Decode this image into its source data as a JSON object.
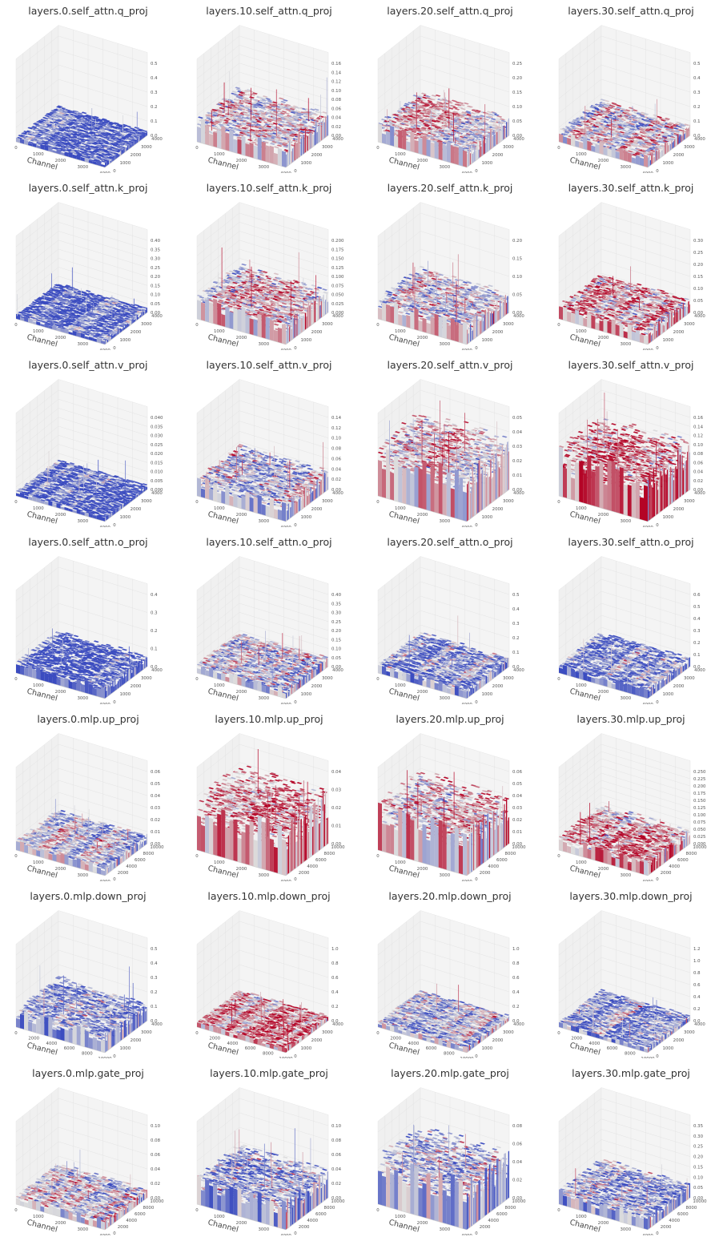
{
  "figure": {
    "colormap_low": "#3b4cc0",
    "colormap_mid": "#dddddd",
    "colormap_high": "#b40426",
    "pane_color": "#f0f0f0",
    "grid_color": "#e3e3e3"
  },
  "chart_data": [
    {
      "type": "surface3d",
      "title": "layers.0.self_attn.q_proj",
      "xlabel": "Channel",
      "x_ticks": [
        "0",
        "1000",
        "2000",
        "3000",
        "4000"
      ],
      "y_ticks": [
        "0",
        "1000",
        "2000",
        "3000",
        "4000"
      ],
      "z_ticks": [
        "0.0",
        "0.1",
        "0.2",
        "0.3",
        "0.4",
        "0.5"
      ],
      "zlim": [
        0,
        0.5
      ],
      "base_level": 0.05,
      "warmth": 0.05
    },
    {
      "type": "surface3d",
      "title": "layers.10.self_attn.q_proj",
      "xlabel": "Channel",
      "x_ticks": [
        "0",
        "1000",
        "2000",
        "3000",
        "4000"
      ],
      "y_ticks": [
        "0",
        "1000",
        "2000",
        "3000",
        "4000"
      ],
      "z_ticks": [
        "0.00",
        "0.02",
        "0.04",
        "0.06",
        "0.08",
        "0.10",
        "0.12",
        "0.14",
        "0.16"
      ],
      "zlim": [
        0,
        0.16
      ],
      "base_level": 0.25,
      "warmth": 0.55
    },
    {
      "type": "surface3d",
      "title": "layers.20.self_attn.q_proj",
      "xlabel": "Channel",
      "x_ticks": [
        "0",
        "1000",
        "2000",
        "3000",
        "4000"
      ],
      "y_ticks": [
        "0",
        "1000",
        "2000",
        "3000",
        "4000"
      ],
      "z_ticks": [
        "0.00",
        "0.05",
        "0.10",
        "0.15",
        "0.20",
        "0.25"
      ],
      "zlim": [
        0,
        0.25
      ],
      "base_level": 0.2,
      "warmth": 0.5
    },
    {
      "type": "surface3d",
      "title": "layers.30.self_attn.q_proj",
      "xlabel": "Channel",
      "x_ticks": [
        "0",
        "1000",
        "2000",
        "3000",
        "4000"
      ],
      "y_ticks": [
        "0",
        "1000",
        "2000",
        "3000",
        "4000"
      ],
      "z_ticks": [
        "0.0",
        "0.1",
        "0.2",
        "0.3",
        "0.4",
        "0.5"
      ],
      "zlim": [
        0,
        0.5
      ],
      "base_level": 0.12,
      "warmth": 0.5
    },
    {
      "type": "surface3d",
      "title": "layers.0.self_attn.k_proj",
      "xlabel": "Channel",
      "x_ticks": [
        "0",
        "1000",
        "2000",
        "3000",
        "4000"
      ],
      "y_ticks": [
        "0",
        "1000",
        "2000",
        "3000",
        "4000"
      ],
      "z_ticks": [
        "0.00",
        "0.05",
        "0.10",
        "0.15",
        "0.20",
        "0.25",
        "0.30",
        "0.35",
        "0.40"
      ],
      "zlim": [
        0,
        0.4
      ],
      "base_level": 0.05,
      "warmth": 0.05
    },
    {
      "type": "surface3d",
      "title": "layers.10.self_attn.k_proj",
      "xlabel": "Channel",
      "x_ticks": [
        "0",
        "1000",
        "2000",
        "3000",
        "4000"
      ],
      "y_ticks": [
        "0",
        "1000",
        "2000",
        "3000",
        "4000"
      ],
      "z_ticks": [
        "0.000",
        "0.025",
        "0.050",
        "0.075",
        "0.100",
        "0.125",
        "0.150",
        "0.175",
        "0.200"
      ],
      "zlim": [
        0,
        0.2
      ],
      "base_level": 0.25,
      "warmth": 0.55
    },
    {
      "type": "surface3d",
      "title": "layers.20.self_attn.k_proj",
      "xlabel": "Channel",
      "x_ticks": [
        "0",
        "1000",
        "2000",
        "3000",
        "4000"
      ],
      "y_ticks": [
        "0",
        "1000",
        "2000",
        "3000",
        "4000"
      ],
      "z_ticks": [
        "0.00",
        "0.05",
        "0.10",
        "0.15",
        "0.20"
      ],
      "zlim": [
        0,
        0.2
      ],
      "base_level": 0.22,
      "warmth": 0.5
    },
    {
      "type": "surface3d",
      "title": "layers.30.self_attn.k_proj",
      "xlabel": "Channel",
      "x_ticks": [
        "0",
        "1000",
        "2000",
        "3000",
        "4000"
      ],
      "y_ticks": [
        "0",
        "1000",
        "2000",
        "3000",
        "4000"
      ],
      "z_ticks": [
        "0.00",
        "0.05",
        "0.10",
        "0.15",
        "0.20",
        "0.25",
        "0.30"
      ],
      "zlim": [
        0,
        0.3
      ],
      "base_level": 0.15,
      "warmth": 0.6
    },
    {
      "type": "surface3d",
      "title": "layers.0.self_attn.v_proj",
      "xlabel": "Channel",
      "x_ticks": [
        "0",
        "1000",
        "2000",
        "3000",
        "4000"
      ],
      "y_ticks": [
        "0",
        "1000",
        "2000",
        "3000",
        "4000"
      ],
      "z_ticks": [
        "0.000",
        "0.005",
        "0.010",
        "0.015",
        "0.020",
        "0.025",
        "0.030",
        "0.035",
        "0.040"
      ],
      "zlim": [
        0,
        0.04
      ],
      "base_level": 0.05,
      "warmth": 0.05
    },
    {
      "type": "surface3d",
      "title": "layers.10.self_attn.v_proj",
      "xlabel": "Channel",
      "x_ticks": [
        "0",
        "1000",
        "2000",
        "3000",
        "4000"
      ],
      "y_ticks": [
        "0",
        "1000",
        "2000",
        "3000",
        "4000"
      ],
      "z_ticks": [
        "0.00",
        "0.02",
        "0.04",
        "0.06",
        "0.08",
        "0.10",
        "0.12",
        "0.14"
      ],
      "zlim": [
        0,
        0.14
      ],
      "base_level": 0.2,
      "warmth": 0.4
    },
    {
      "type": "surface3d",
      "title": "layers.20.self_attn.v_proj",
      "xlabel": "Channel",
      "x_ticks": [
        "0",
        "1000",
        "2000",
        "3000",
        "4000"
      ],
      "y_ticks": [
        "0",
        "1000",
        "2000",
        "3000",
        "4000"
      ],
      "z_ticks": [
        "0.00",
        "0.01",
        "0.02",
        "0.03",
        "0.04",
        "0.05"
      ],
      "zlim": [
        0,
        0.05
      ],
      "base_level": 0.55,
      "warmth": 0.55
    },
    {
      "type": "surface3d",
      "title": "layers.30.self_attn.v_proj",
      "xlabel": "Channel",
      "x_ticks": [
        "0",
        "1000",
        "2000",
        "3000",
        "4000"
      ],
      "y_ticks": [
        "0",
        "1000",
        "2000",
        "3000",
        "4000"
      ],
      "z_ticks": [
        "0.00",
        "0.02",
        "0.04",
        "0.06",
        "0.08",
        "0.10",
        "0.12",
        "0.14",
        "0.16"
      ],
      "zlim": [
        0,
        0.16
      ],
      "base_level": 0.5,
      "warmth": 0.75
    },
    {
      "type": "surface3d",
      "title": "layers.0.self_attn.o_proj",
      "xlabel": "Channel",
      "x_ticks": [
        "0",
        "1000",
        "2000",
        "3000",
        "4000"
      ],
      "y_ticks": [
        "0",
        "1000",
        "2000",
        "3000",
        "4000"
      ],
      "z_ticks": [
        "0.0",
        "0.1",
        "0.2",
        "0.3",
        "0.4"
      ],
      "zlim": [
        0,
        0.4
      ],
      "base_level": 0.12,
      "warmth": 0.05
    },
    {
      "type": "surface3d",
      "title": "layers.10.self_attn.o_proj",
      "xlabel": "Channel",
      "x_ticks": [
        "0",
        "1000",
        "2000",
        "3000",
        "4000"
      ],
      "y_ticks": [
        "0",
        "1000",
        "2000",
        "3000",
        "4000"
      ],
      "z_ticks": [
        "0.00",
        "0.05",
        "0.10",
        "0.15",
        "0.20",
        "0.25",
        "0.30",
        "0.35",
        "0.40"
      ],
      "zlim": [
        0,
        0.4
      ],
      "base_level": 0.1,
      "warmth": 0.4
    },
    {
      "type": "surface3d",
      "title": "layers.20.self_attn.o_proj",
      "xlabel": "Channel",
      "x_ticks": [
        "0",
        "1000",
        "2000",
        "3000",
        "4000"
      ],
      "y_ticks": [
        "0",
        "1000",
        "2000",
        "3000",
        "4000"
      ],
      "z_ticks": [
        "0.0",
        "0.1",
        "0.2",
        "0.3",
        "0.4",
        "0.5"
      ],
      "zlim": [
        0,
        0.5
      ],
      "base_level": 0.1,
      "warmth": 0.25
    },
    {
      "type": "surface3d",
      "title": "layers.30.self_attn.o_proj",
      "xlabel": "Channel",
      "x_ticks": [
        "0",
        "1000",
        "2000",
        "3000",
        "4000"
      ],
      "y_ticks": [
        "0",
        "1000",
        "2000",
        "3000",
        "4000"
      ],
      "z_ticks": [
        "0.0",
        "0.1",
        "0.2",
        "0.3",
        "0.4",
        "0.5",
        "0.6"
      ],
      "zlim": [
        0,
        0.6
      ],
      "base_level": 0.1,
      "warmth": 0.2
    },
    {
      "type": "surface3d",
      "title": "layers.0.mlp.up_proj",
      "xlabel": "Channel",
      "x_ticks": [
        "0",
        "1000",
        "2000",
        "3000",
        "4000"
      ],
      "y_ticks": [
        "0",
        "2000",
        "4000",
        "6000",
        "8000",
        "10000"
      ],
      "z_ticks": [
        "0.00",
        "0.01",
        "0.02",
        "0.03",
        "0.04",
        "0.05",
        "0.06"
      ],
      "zlim": [
        0,
        0.06
      ],
      "base_level": 0.1,
      "warmth": 0.4
    },
    {
      "type": "surface3d",
      "title": "layers.10.mlp.up_proj",
      "xlabel": "Channel",
      "x_ticks": [
        "0",
        "1000",
        "2000",
        "3000",
        "4000"
      ],
      "y_ticks": [
        "0",
        "2000",
        "4000",
        "6000",
        "8000",
        "10000"
      ],
      "z_ticks": [
        "0.00",
        "0.01",
        "0.02",
        "0.03",
        "0.04"
      ],
      "zlim": [
        0,
        0.04
      ],
      "base_level": 0.55,
      "warmth": 0.7
    },
    {
      "type": "surface3d",
      "title": "layers.20.mlp.up_proj",
      "xlabel": "Channel",
      "x_ticks": [
        "0",
        "1000",
        "2000",
        "3000",
        "4000"
      ],
      "y_ticks": [
        "0",
        "2000",
        "4000",
        "6000",
        "8000",
        "10000"
      ],
      "z_ticks": [
        "0.00",
        "0.01",
        "0.02",
        "0.03",
        "0.04",
        "0.05",
        "0.06"
      ],
      "zlim": [
        0,
        0.06
      ],
      "base_level": 0.5,
      "warmth": 0.6
    },
    {
      "type": "surface3d",
      "title": "layers.30.mlp.up_proj",
      "xlabel": "Channel",
      "x_ticks": [
        "0",
        "1000",
        "2000",
        "3000",
        "4000"
      ],
      "y_ticks": [
        "0",
        "2000",
        "4000",
        "6000",
        "8000",
        "10000"
      ],
      "z_ticks": [
        "0.000",
        "0.025",
        "0.050",
        "0.075",
        "0.100",
        "0.125",
        "0.150",
        "0.175",
        "0.200",
        "0.225",
        "0.250"
      ],
      "zlim": [
        0,
        0.25
      ],
      "base_level": 0.15,
      "warmth": 0.7
    },
    {
      "type": "surface3d",
      "title": "layers.0.mlp.down_proj",
      "xlabel": "Channel",
      "x_ticks": [
        "0",
        "2000",
        "4000",
        "6000",
        "8000",
        "10000"
      ],
      "y_ticks": [
        "0",
        "1000",
        "2000",
        "3000",
        "4000"
      ],
      "z_ticks": [
        "0.0",
        "0.1",
        "0.2",
        "0.3",
        "0.4",
        "0.5"
      ],
      "zlim": [
        0,
        0.5
      ],
      "base_level": 0.2,
      "warmth": 0.2
    },
    {
      "type": "surface3d",
      "title": "layers.10.mlp.down_proj",
      "xlabel": "Channel",
      "x_ticks": [
        "0",
        "2000",
        "4000",
        "6000",
        "8000",
        "10000"
      ],
      "y_ticks": [
        "0",
        "1000",
        "2000",
        "3000",
        "4000"
      ],
      "z_ticks": [
        "0.0",
        "0.2",
        "0.4",
        "0.6",
        "0.8",
        "1.0"
      ],
      "zlim": [
        0,
        1.0
      ],
      "base_level": 0.06,
      "warmth": 0.65
    },
    {
      "type": "surface3d",
      "title": "layers.20.mlp.down_proj",
      "xlabel": "Channel",
      "x_ticks": [
        "0",
        "2000",
        "4000",
        "6000",
        "8000",
        "10000"
      ],
      "y_ticks": [
        "0",
        "1000",
        "2000",
        "3000",
        "4000"
      ],
      "z_ticks": [
        "0.0",
        "0.2",
        "0.4",
        "0.6",
        "0.8",
        "1.0"
      ],
      "zlim": [
        0,
        1.0
      ],
      "base_level": 0.06,
      "warmth": 0.45
    },
    {
      "type": "surface3d",
      "title": "layers.30.mlp.down_proj",
      "xlabel": "Channel",
      "x_ticks": [
        "0",
        "2000",
        "4000",
        "6000",
        "8000",
        "10000"
      ],
      "y_ticks": [
        "0",
        "1000",
        "2000",
        "3000",
        "4000"
      ],
      "z_ticks": [
        "0.0",
        "0.2",
        "0.4",
        "0.6",
        "0.8",
        "1.0",
        "1.2"
      ],
      "zlim": [
        0,
        1.2
      ],
      "base_level": 0.06,
      "warmth": 0.3
    },
    {
      "type": "surface3d",
      "title": "layers.0.mlp.gate_proj",
      "xlabel": "Channel",
      "x_ticks": [
        "0",
        "1000",
        "2000",
        "3000",
        "4000"
      ],
      "y_ticks": [
        "0",
        "2000",
        "4000",
        "6000",
        "8000",
        "10000"
      ],
      "z_ticks": [
        "0.00",
        "0.02",
        "0.04",
        "0.06",
        "0.08",
        "0.10"
      ],
      "zlim": [
        0,
        0.1
      ],
      "base_level": 0.1,
      "warmth": 0.45
    },
    {
      "type": "surface3d",
      "title": "layers.10.mlp.gate_proj",
      "xlabel": "Channel",
      "x_ticks": [
        "0",
        "1000",
        "2000",
        "3000",
        "4000"
      ],
      "y_ticks": [
        "0",
        "2000",
        "4000",
        "6000",
        "8000",
        "10000"
      ],
      "z_ticks": [
        "0.00",
        "0.02",
        "0.04",
        "0.06",
        "0.08",
        "0.10"
      ],
      "zlim": [
        0,
        0.1
      ],
      "base_level": 0.3,
      "warmth": 0.3
    },
    {
      "type": "surface3d",
      "title": "layers.20.mlp.gate_proj",
      "xlabel": "Channel",
      "x_ticks": [
        "0",
        "1000",
        "2000",
        "3000",
        "4000"
      ],
      "y_ticks": [
        "0",
        "2000",
        "4000",
        "6000",
        "8000",
        "10000"
      ],
      "z_ticks": [
        "0.00",
        "0.02",
        "0.04",
        "0.06",
        "0.08"
      ],
      "zlim": [
        0,
        0.08
      ],
      "base_level": 0.5,
      "warmth": 0.35
    },
    {
      "type": "surface3d",
      "title": "layers.30.mlp.gate_proj",
      "xlabel": "Channel",
      "x_ticks": [
        "0",
        "1000",
        "2000",
        "3000",
        "4000"
      ],
      "y_ticks": [
        "0",
        "2000",
        "4000",
        "6000",
        "8000",
        "10000"
      ],
      "z_ticks": [
        "0.00",
        "0.05",
        "0.10",
        "0.15",
        "0.20",
        "0.25",
        "0.30",
        "0.35"
      ],
      "zlim": [
        0,
        0.35
      ],
      "base_level": 0.15,
      "warmth": 0.3
    }
  ]
}
